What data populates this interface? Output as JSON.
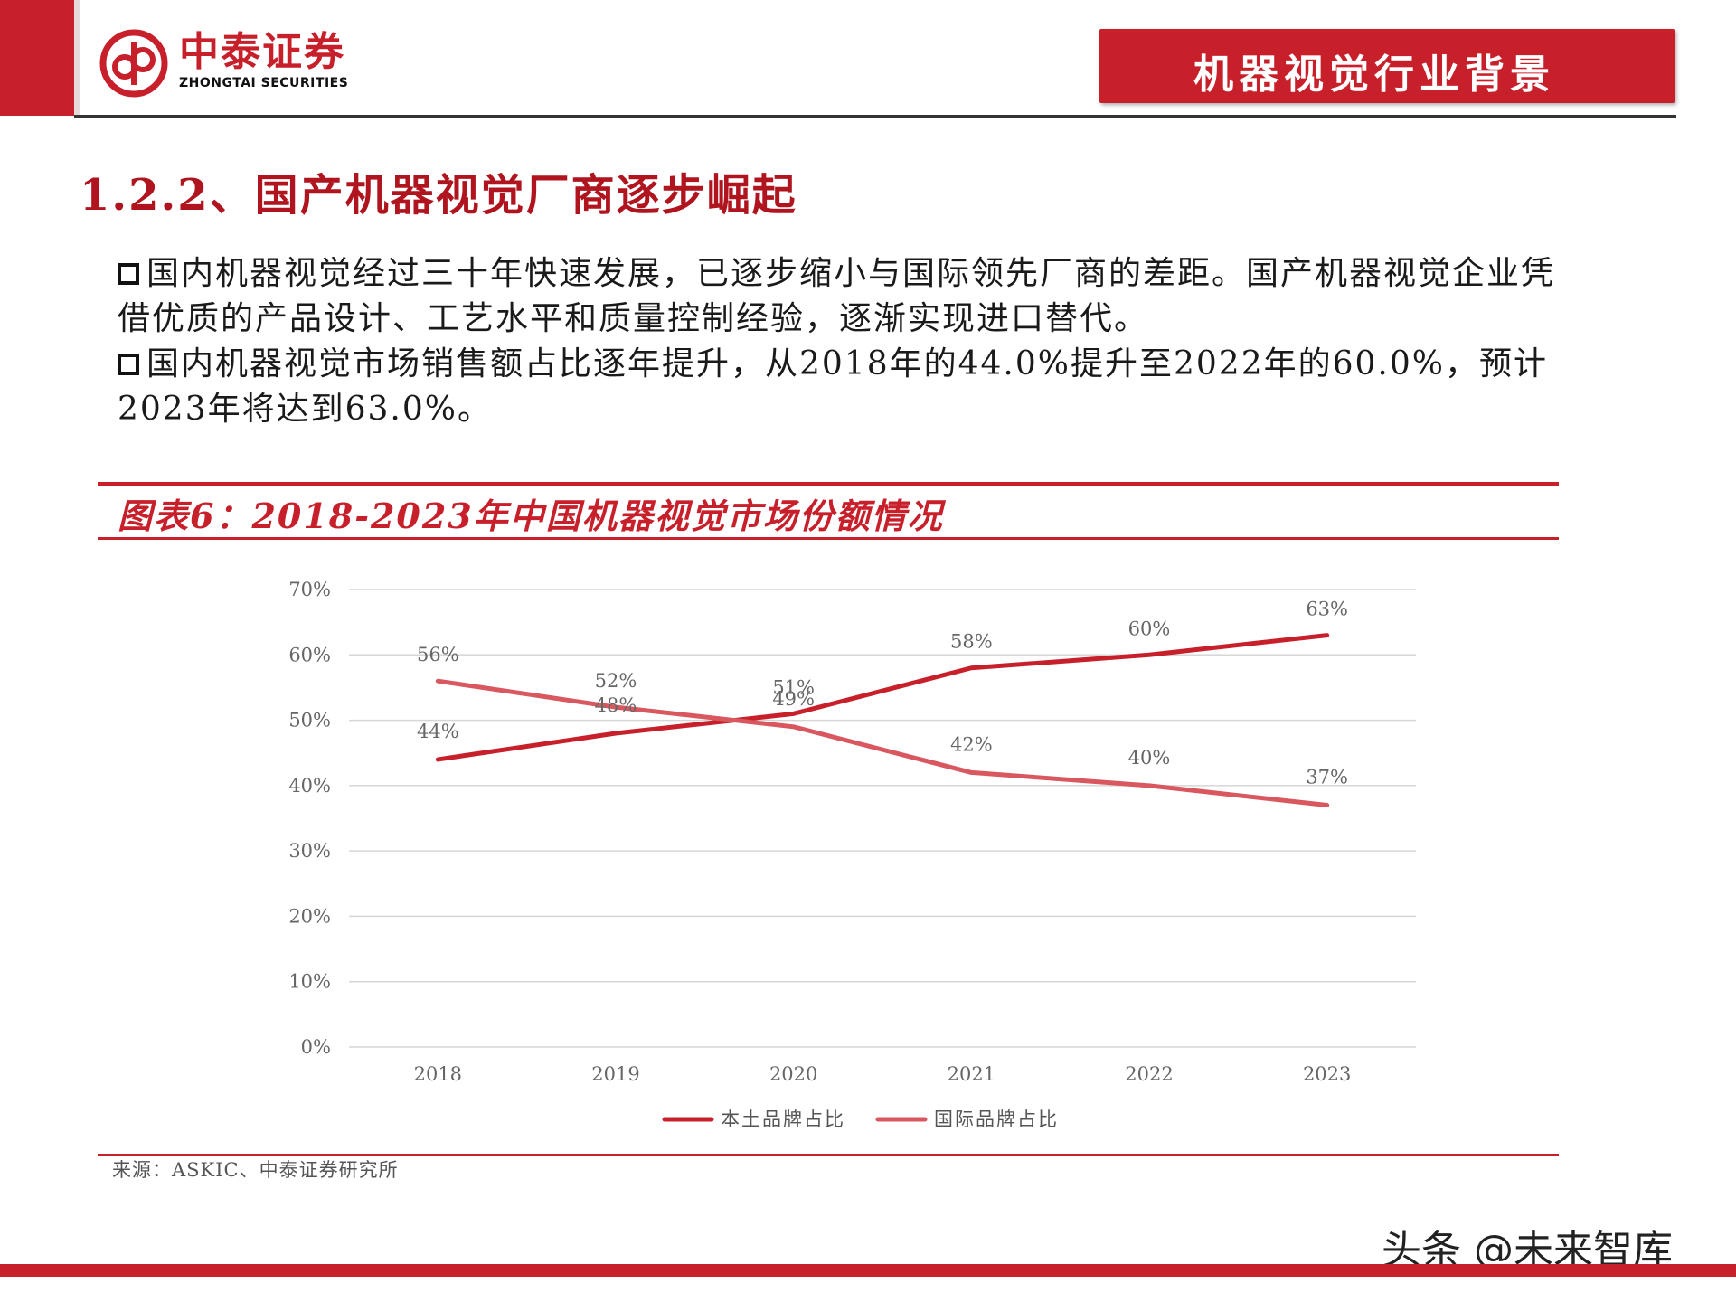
{
  "header": {
    "logo_cn": "中泰证券",
    "logo_en": "ZHONGTAI SECURITIES",
    "banner": "机器视觉行业背景"
  },
  "section": {
    "title": "1.2.2、国产机器视觉厂商逐步崛起"
  },
  "paragraphs": [
    "国内机器视觉经过三十年快速发展，已逐步缩小与国际领先厂商的差距。国产机器视觉企业凭借优质的产品设计、工艺水平和质量控制经验，逐渐实现进口替代。",
    "国内机器视觉市场销售额占比逐年提升，从2018年的44.0%提升至2022年的60.0%，预计2023年将达到63.0%。"
  ],
  "chart_title": "图表6：2018-2023年中国机器视觉市场份额情况",
  "source": "来源：ASKIC、中泰证券研究所",
  "watermark": "头条 @未来智库",
  "colors": {
    "brand": "#c8202b",
    "series_domestic": "#c8202b",
    "series_international": "#d9585f"
  },
  "chart_data": {
    "type": "line",
    "categories": [
      "2018",
      "2019",
      "2020",
      "2021",
      "2022",
      "2023"
    ],
    "series": [
      {
        "name": "本土品牌占比",
        "values": [
          44,
          48,
          51,
          58,
          60,
          63
        ],
        "labels": [
          "44%",
          "48%",
          "51%",
          "58%",
          "60%",
          "63%"
        ]
      },
      {
        "name": "国际品牌占比",
        "values": [
          56,
          52,
          49,
          42,
          40,
          37
        ],
        "labels": [
          "56%",
          "52%",
          "49%",
          "42%",
          "40%",
          "37%"
        ]
      }
    ],
    "ylim": [
      0,
      70
    ],
    "yticks": [
      "0%",
      "10%",
      "20%",
      "30%",
      "40%",
      "50%",
      "60%",
      "70%"
    ],
    "grid": true,
    "legend": "bottom"
  }
}
